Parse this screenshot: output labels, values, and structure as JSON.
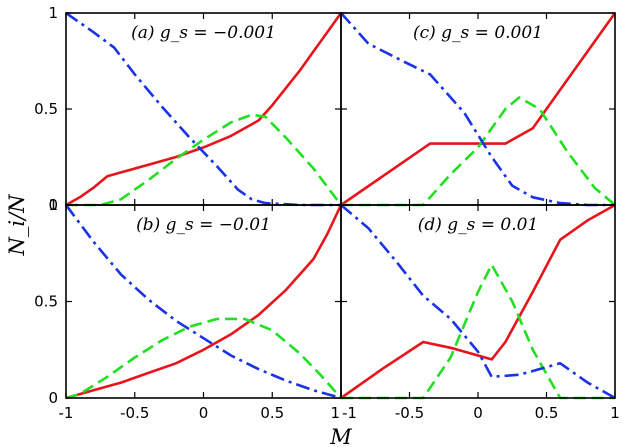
{
  "chart_data": {
    "type": "line",
    "ylabel": "N_i/N",
    "xlabel": "M",
    "x_tick_labels": [
      "-1",
      "-0.5",
      "0",
      "0.5",
      "1"
    ],
    "y_tick_labels": [
      "0",
      "0.5",
      "1"
    ],
    "xlim": [
      -1,
      1
    ],
    "ylim": [
      0,
      1
    ],
    "grid": false,
    "legend": "none",
    "colors": {
      "red": "#e8141b",
      "green": "#20e020",
      "blue": "#1a33e6"
    },
    "panels": [
      {
        "label": "(a) g_s = −0.001",
        "series": [
          {
            "color": "red",
            "style": "solid",
            "x": [
              -1,
              -0.9,
              -0.8,
              -0.7,
              -0.6,
              -0.4,
              -0.2,
              0,
              0.2,
              0.4,
              0.5,
              0.6,
              0.7,
              0.8,
              0.9,
              1
            ],
            "y": [
              0,
              0.04,
              0.09,
              0.15,
              0.17,
              0.21,
              0.25,
              0.3,
              0.36,
              0.44,
              0.52,
              0.61,
              0.7,
              0.8,
              0.9,
              1.0
            ]
          },
          {
            "color": "green",
            "style": "dashed",
            "x": [
              -1,
              -0.75,
              -0.6,
              -0.4,
              -0.2,
              0,
              0.2,
              0.35,
              0.45,
              0.6,
              0.8,
              1
            ],
            "y": [
              0,
              0,
              0.03,
              0.13,
              0.24,
              0.34,
              0.43,
              0.47,
              0.46,
              0.35,
              0.19,
              0
            ]
          },
          {
            "color": "blue",
            "style": "dashdot",
            "x": [
              -1,
              -0.8,
              -0.65,
              -0.5,
              -0.3,
              -0.1,
              0.1,
              0.25,
              0.35,
              0.45,
              0.7,
              1
            ],
            "y": [
              1.0,
              0.9,
              0.82,
              0.68,
              0.51,
              0.35,
              0.2,
              0.08,
              0.03,
              0.01,
              0,
              0
            ]
          }
        ]
      },
      {
        "label": "(c) g_s = 0.001",
        "series": [
          {
            "color": "red",
            "style": "solid",
            "x": [
              -1,
              -0.35,
              0.2,
              0.4,
              0.6,
              0.8,
              1
            ],
            "y": [
              0,
              0.32,
              0.32,
              0.4,
              0.6,
              0.8,
              1.0
            ]
          },
          {
            "color": "green",
            "style": "dashed",
            "x": [
              -1,
              -0.4,
              -0.2,
              0,
              0.2,
              0.3,
              0.45,
              0.65,
              0.85,
              1
            ],
            "y": [
              0,
              0,
              0.16,
              0.3,
              0.5,
              0.56,
              0.5,
              0.28,
              0.09,
              0
            ]
          },
          {
            "color": "blue",
            "style": "dashdot",
            "x": [
              -1,
              -0.8,
              -0.55,
              -0.35,
              -0.1,
              0.1,
              0.25,
              0.4,
              0.6,
              0.8,
              1
            ],
            "y": [
              1.0,
              0.84,
              0.75,
              0.68,
              0.48,
              0.25,
              0.1,
              0.04,
              0.01,
              0,
              0
            ]
          }
        ]
      },
      {
        "label": "(b) g_s = −0.01",
        "series": [
          {
            "color": "red",
            "style": "solid",
            "x": [
              -1,
              -0.8,
              -0.6,
              -0.4,
              -0.2,
              0,
              0.2,
              0.4,
              0.6,
              0.8,
              0.9,
              1
            ],
            "y": [
              0,
              0.04,
              0.08,
              0.13,
              0.18,
              0.25,
              0.33,
              0.43,
              0.56,
              0.72,
              0.85,
              1.0
            ]
          },
          {
            "color": "green",
            "style": "dashed",
            "x": [
              -1,
              -0.9,
              -0.7,
              -0.5,
              -0.3,
              -0.1,
              0.1,
              0.3,
              0.5,
              0.7,
              0.85,
              1
            ],
            "y": [
              0,
              0.02,
              0.11,
              0.21,
              0.3,
              0.37,
              0.41,
              0.41,
              0.35,
              0.23,
              0.12,
              0
            ]
          },
          {
            "color": "blue",
            "style": "dashdot",
            "x": [
              -1,
              -0.8,
              -0.6,
              -0.4,
              -0.2,
              0,
              0.2,
              0.4,
              0.6,
              0.8,
              1
            ],
            "y": [
              1.0,
              0.81,
              0.64,
              0.51,
              0.4,
              0.31,
              0.22,
              0.15,
              0.09,
              0.04,
              0
            ]
          }
        ]
      },
      {
        "label": "(d) g_s = 0.01",
        "series": [
          {
            "color": "red",
            "style": "solid",
            "x": [
              -1,
              -0.7,
              -0.4,
              -0.2,
              0,
              0.1,
              0.2,
              0.4,
              0.6,
              0.8,
              1
            ],
            "y": [
              0,
              0.15,
              0.29,
              0.26,
              0.22,
              0.2,
              0.29,
              0.55,
              0.82,
              0.92,
              1.0
            ]
          },
          {
            "color": "green",
            "style": "dashed",
            "x": [
              -1,
              -0.4,
              -0.2,
              0,
              0.1,
              0.25,
              0.4,
              0.6,
              1
            ],
            "y": [
              0,
              0,
              0.21,
              0.55,
              0.69,
              0.5,
              0.25,
              0,
              0
            ]
          },
          {
            "color": "blue",
            "style": "dashdot",
            "x": [
              -1,
              -0.8,
              -0.6,
              -0.4,
              -0.2,
              0,
              0.1,
              0.3,
              0.6,
              0.8,
              1
            ],
            "y": [
              1.0,
              0.88,
              0.71,
              0.53,
              0.41,
              0.24,
              0.11,
              0.12,
              0.18,
              0.08,
              0
            ]
          }
        ]
      }
    ]
  }
}
